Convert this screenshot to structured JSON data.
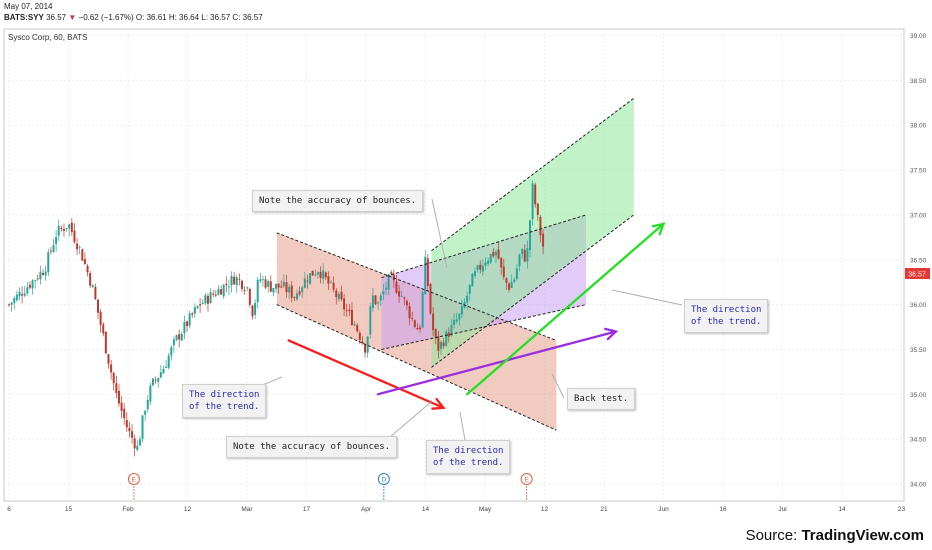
{
  "header": {
    "date": "May 07, 2014",
    "symbol": "BATS:SYY",
    "last": "36.57",
    "change": "−0.62 (−1.67%)",
    "ohlc": "O: 36.61  H: 36.64  L: 36.57  C: 36.57"
  },
  "chart_title": "Sysco Corp, 60, BATS",
  "source": {
    "prefix": "Source: ",
    "brand": "TradingView.com"
  },
  "notes": {
    "bounces_top": "Note the accuracy of bounces.",
    "bounces_bottom": "Note the accuracy of bounces.",
    "trend_left": "The direction\nof the trend.",
    "trend_mid": "The direction\nof the trend.",
    "trend_right": "The direction\nof the trend.",
    "back_test": "Back test."
  },
  "colors": {
    "up": "#26a69a",
    "down": "#c0392b",
    "red_channel": "#e8a08c",
    "violet_channel": "#c9a0f0",
    "green_channel": "#8fe89a",
    "red_arrow": "#ff1a1a",
    "violet_arrow": "#9b2fe0",
    "green_arrow": "#22e022",
    "last_price_tag": "#e53935"
  },
  "chart_data": {
    "type": "candlestick",
    "ylim": [
      33.85,
      39.6
    ],
    "y_ticks": [
      "34.00",
      "34.50",
      "35.00",
      "35.50",
      "36.00",
      "36.50",
      "37.00",
      "37.50",
      "38.00",
      "38.50",
      "39.00",
      "39.50"
    ],
    "x_ticks": [
      "6",
      "15",
      "Feb",
      "12",
      "Mar",
      "17",
      "Apr",
      "14",
      "May",
      "12",
      "21",
      "Jun",
      "16",
      "Jul",
      "14",
      "23",
      "Au"
    ],
    "last_price": 36.57,
    "event_markers": [
      {
        "label": "E",
        "x": 10.5
      },
      {
        "label": "D",
        "x": 31.5
      },
      {
        "label": "E",
        "x": 43.5
      }
    ],
    "close_path": [
      [
        0,
        36.0
      ],
      [
        1.5,
        36.2
      ],
      [
        3,
        36.4
      ],
      [
        4,
        36.8
      ],
      [
        5,
        36.9
      ],
      [
        6,
        36.6
      ],
      [
        7,
        36.2
      ],
      [
        8,
        35.6
      ],
      [
        9,
        35.0
      ],
      [
        10,
        34.6
      ],
      [
        10.8,
        34.4
      ],
      [
        11.5,
        34.9
      ],
      [
        12,
        35.1
      ],
      [
        13,
        35.3
      ],
      [
        14,
        35.6
      ],
      [
        15,
        35.8
      ],
      [
        16,
        36.0
      ],
      [
        17,
        36.1
      ],
      [
        18,
        36.2
      ],
      [
        19,
        36.3
      ],
      [
        20,
        36.2
      ],
      [
        20.5,
        35.9
      ],
      [
        21,
        36.3
      ],
      [
        22,
        36.2
      ],
      [
        23,
        36.2
      ],
      [
        24,
        36.1
      ],
      [
        25,
        36.3
      ],
      [
        26,
        36.4
      ],
      [
        27,
        36.2
      ],
      [
        28,
        36.0
      ],
      [
        29,
        35.8
      ],
      [
        30,
        35.5
      ],
      [
        30.5,
        36.1
      ],
      [
        31,
        36.0
      ],
      [
        32,
        36.3
      ],
      [
        33,
        36.1
      ],
      [
        34,
        35.8
      ],
      [
        34.5,
        35.7
      ],
      [
        35,
        36.5
      ],
      [
        35.5,
        35.8
      ],
      [
        36,
        35.5
      ],
      [
        37,
        35.7
      ],
      [
        38,
        35.9
      ],
      [
        38.5,
        36.1
      ],
      [
        39,
        36.3
      ],
      [
        40,
        36.5
      ],
      [
        41,
        36.6
      ],
      [
        41.5,
        36.3
      ],
      [
        42,
        36.2
      ],
      [
        42.5,
        36.3
      ],
      [
        43,
        36.6
      ],
      [
        43.5,
        36.5
      ],
      [
        44,
        37.3
      ],
      [
        44.5,
        36.9
      ],
      [
        45,
        36.57
      ]
    ],
    "channels": [
      {
        "name": "red",
        "upper": [
          [
            22.5,
            36.8
          ],
          [
            46,
            35.6
          ]
        ],
        "lower": [
          [
            22.5,
            36.0
          ],
          [
            46,
            34.6
          ]
        ]
      },
      {
        "name": "violet",
        "upper": [
          [
            31.3,
            36.3
          ],
          [
            48.5,
            37.0
          ]
        ],
        "lower": [
          [
            31.3,
            35.5
          ],
          [
            48.5,
            36.0
          ]
        ]
      },
      {
        "name": "green",
        "upper": [
          [
            35.5,
            36.6
          ],
          [
            52.5,
            38.3
          ]
        ],
        "lower": [
          [
            35.5,
            35.3
          ],
          [
            52.5,
            37.0
          ]
        ]
      }
    ],
    "arrows": [
      {
        "color": "red",
        "from": [
          23.5,
          35.6
        ],
        "to": [
          36.5,
          34.85
        ]
      },
      {
        "color": "violet",
        "from": [
          31,
          35.0
        ],
        "to": [
          51,
          35.7
        ]
      },
      {
        "color": "green",
        "from": [
          38.5,
          35.0
        ],
        "to": [
          55,
          36.9
        ]
      }
    ]
  }
}
